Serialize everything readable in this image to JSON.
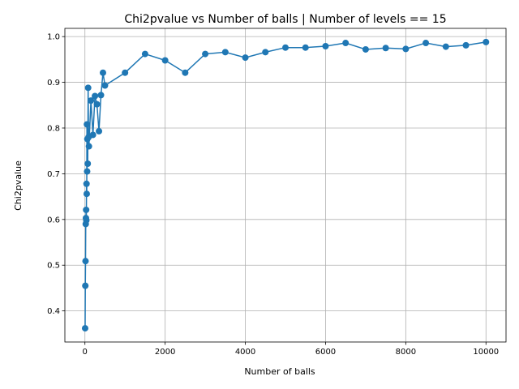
{
  "chart_data": {
    "type": "line",
    "title": "Chi2pvalue vs Number of balls | Number of levels == 15",
    "xlabel": "Number of balls",
    "ylabel": "Chi2pvalue",
    "xlim": [
      -500,
      10500
    ],
    "ylim": [
      0.332,
      1.018
    ],
    "xticks": [
      0,
      2000,
      4000,
      6000,
      8000,
      10000
    ],
    "xtick_labels": [
      "0",
      "2000",
      "4000",
      "6000",
      "8000",
      "10000"
    ],
    "yticks": [
      0.4,
      0.5,
      0.6,
      0.7,
      0.8,
      0.9,
      1.0
    ],
    "ytick_labels": [
      "0.4",
      "0.5",
      "0.6",
      "0.7",
      "0.8",
      "0.9",
      "1.0"
    ],
    "grid": true,
    "markers": true,
    "color": "#1f77b4",
    "series": [
      {
        "x": [
          5,
          10,
          15,
          20,
          25,
          30,
          35,
          40,
          45,
          50,
          55,
          60,
          70,
          80,
          90,
          100,
          150,
          200,
          250,
          300,
          350,
          400,
          450,
          500,
          1000,
          1500,
          2000,
          2500,
          3000,
          3500,
          4000,
          4500,
          5000,
          5500,
          6000,
          6500,
          7000,
          7500,
          8000,
          8500,
          9000,
          9500,
          10000
        ],
        "y": [
          0.362,
          0.455,
          0.509,
          0.59,
          0.603,
          0.621,
          0.598,
          0.678,
          0.656,
          0.808,
          0.705,
          0.776,
          0.722,
          0.888,
          0.78,
          0.76,
          0.86,
          0.785,
          0.87,
          0.852,
          0.793,
          0.872,
          0.921,
          0.893,
          0.921,
          0.962,
          0.948,
          0.921,
          0.962,
          0.966,
          0.954,
          0.966,
          0.976,
          0.976,
          0.979,
          0.986,
          0.972,
          0.975,
          0.973,
          0.986,
          0.978,
          0.981,
          0.988
        ]
      }
    ]
  }
}
